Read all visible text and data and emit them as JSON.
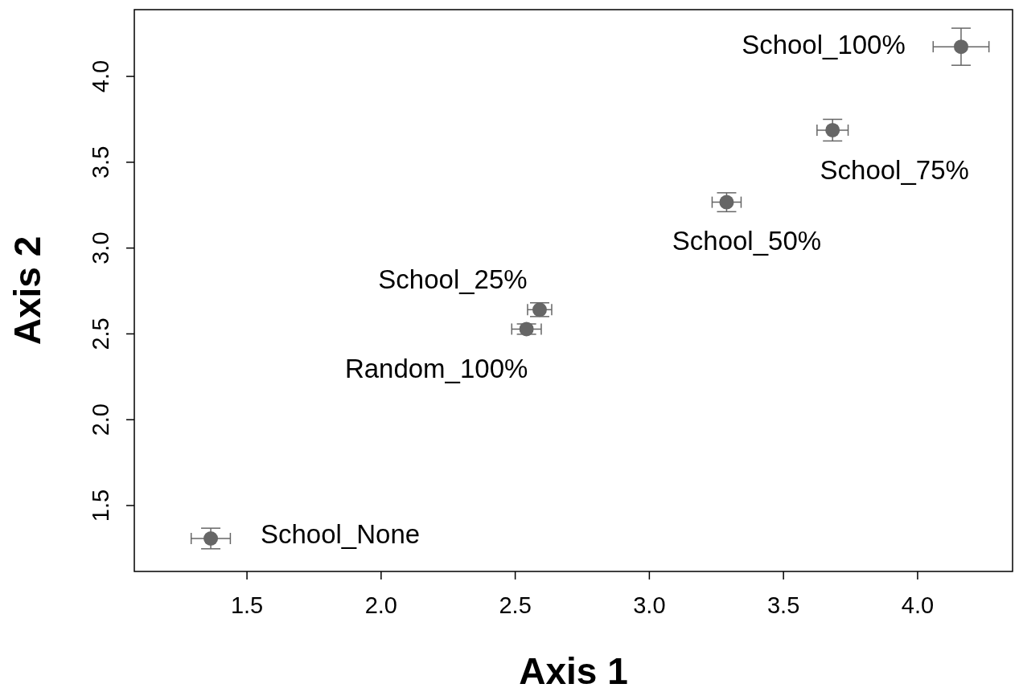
{
  "chart_data": {
    "type": "scatter",
    "xlabel": "Axis 1",
    "ylabel": "Axis 2",
    "marker": "circle",
    "grid": false,
    "xlim": [
      1.08,
      4.354
    ],
    "ylim": [
      1.116,
      4.389
    ],
    "xticks": [
      {
        "value": 1.5,
        "label": "1.5"
      },
      {
        "value": 2,
        "label": "2.0"
      },
      {
        "value": 2.5,
        "label": "2.5"
      },
      {
        "value": 3,
        "label": "3.0"
      },
      {
        "value": 3.5,
        "label": "3.5"
      },
      {
        "value": 4,
        "label": "4.0"
      }
    ],
    "yticks": [
      {
        "value": 1.5,
        "label": "1.5"
      },
      {
        "value": 2,
        "label": "2.0"
      },
      {
        "value": 2.5,
        "label": "2.5"
      },
      {
        "value": 3,
        "label": "3.0"
      },
      {
        "value": 3.5,
        "label": "3.5"
      },
      {
        "value": 4,
        "label": "4.0"
      }
    ],
    "series": [
      {
        "color": "#666666",
        "x": [
          1.365,
          2.542,
          2.591,
          3.288,
          3.683,
          4.162
        ],
        "values": [
          1.308,
          2.528,
          2.641,
          3.267,
          3.687,
          4.173
        ],
        "xerrors": [
          0.073,
          0.055,
          0.045,
          0.054,
          0.058,
          0.104
        ],
        "errors": [
          0.06,
          0.03,
          0.04,
          0.055,
          0.063,
          0.108
        ]
      }
    ],
    "annotations": [
      {
        "text": "School_None",
        "x": 1.365,
        "y": 1.308
      },
      {
        "text": "Random_100%",
        "x": 2.542,
        "y": 2.528
      },
      {
        "text": "School_25%",
        "x": 2.591,
        "y": 2.641
      },
      {
        "text": "School_50%",
        "x": 3.288,
        "y": 3.267
      },
      {
        "text": "School_75%",
        "x": 3.683,
        "y": 3.687
      },
      {
        "text": "School_100%",
        "x": 4.162,
        "y": 4.173
      }
    ]
  }
}
